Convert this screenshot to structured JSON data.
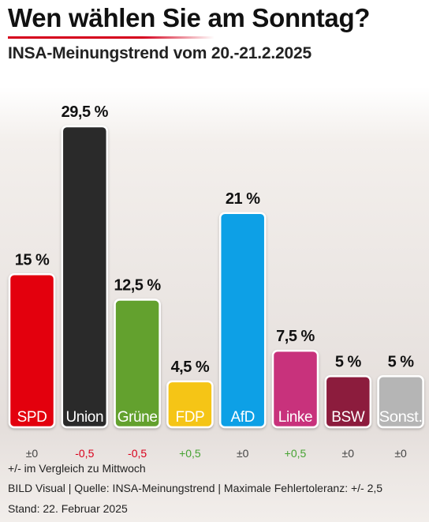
{
  "header": {
    "title": "Wen wählen Sie am Sonntag?",
    "subtitle": "INSA-Meinungstrend vom 20.-21.2.2025"
  },
  "chart_data": {
    "type": "bar",
    "title": "Wen wählen Sie am Sonntag?",
    "subtitle": "INSA-Meinungstrend vom 20.-21.2.2025",
    "categories": [
      "SPD",
      "Union",
      "Grüne",
      "FDP",
      "AfD",
      "Linke",
      "BSW",
      "Sonst."
    ],
    "values": [
      15,
      29.5,
      12.5,
      4.5,
      21,
      7.5,
      5,
      5
    ],
    "value_labels": [
      "15 %",
      "29,5 %",
      "12,5 %",
      "4,5 %",
      "21 %",
      "7,5 %",
      "5 %",
      "5 %"
    ],
    "changes": [
      "±0",
      "-0,5",
      "-0,5",
      "+0,5",
      "±0",
      "+0,5",
      "±0",
      "±0"
    ],
    "colors": [
      "#e3000f",
      "#2b2b2b",
      "#64a12d",
      "#f5c518",
      "#0aa0e6",
      "#c8317b",
      "#8c1c3e",
      "#b5b5b5"
    ],
    "change_colors": {
      "positive": "#46a332",
      "negative": "#d9001b",
      "neutral": "#444444"
    },
    "xlabel": "",
    "ylabel": "",
    "ylim": [
      0,
      30
    ],
    "grid": false,
    "legend": "none"
  },
  "footer": {
    "note": "+/- im Vergleich zu Mittwoch",
    "source": "BILD Visual | Quelle: INSA-Meinungstrend | Maximale Fehlertoleranz: +/- 2,5",
    "date": "Stand: 22. Februar 2025"
  }
}
